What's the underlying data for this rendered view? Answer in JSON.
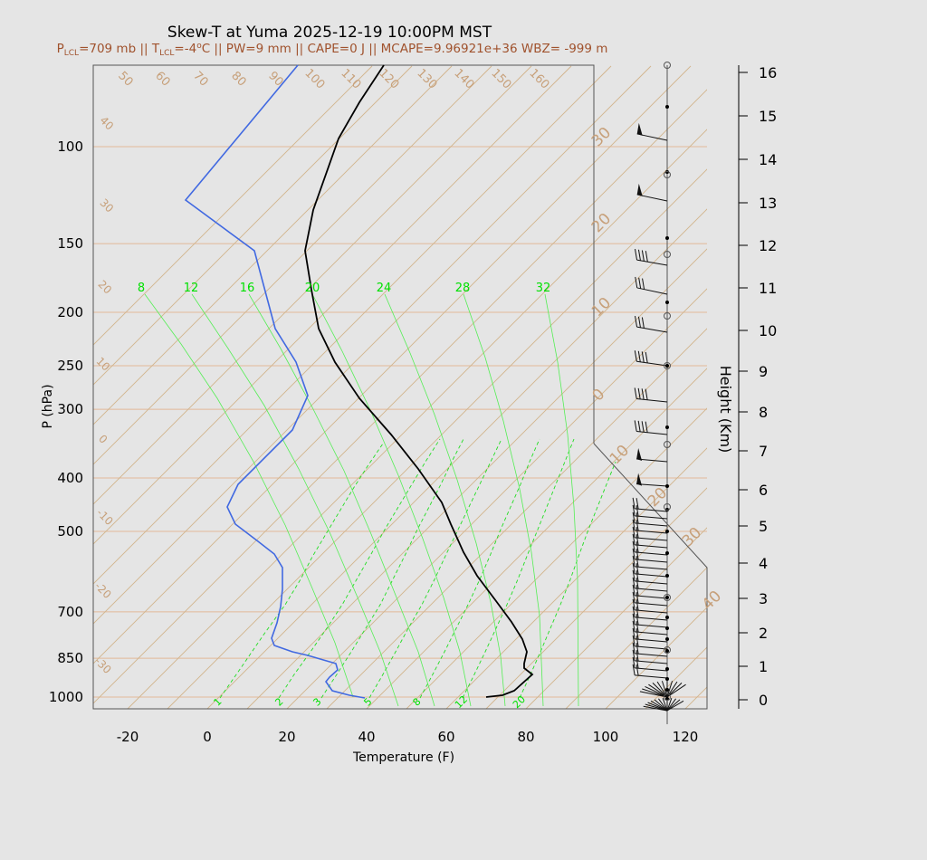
{
  "chart_data": {
    "type": "skew-t",
    "title": "Skew-T at Yuma 2025-12-19 10:00PM MST",
    "subtitle": {
      "lcl_p_label": "P",
      "lcl_p_sub": "LCL",
      "lcl_p_value": "=709 mb || ",
      "lcl_t_label": "T",
      "lcl_t_sub": "LCL",
      "lcl_t_value": "=-4",
      "lcl_t_unit": "C || PW=9 mm || CAPE=0 J || MCAPE=9.96921e+36 WBZ= -999 m"
    },
    "xlabel": "Temperature (F)",
    "ylabel": "P (hPa)",
    "height_label": "Height (Km)",
    "colors": {
      "temperature": "#000000",
      "dewpoint": "#4169e1",
      "isotherm": "#d2b48c",
      "mixing_ratio": "#00ee00",
      "background": "#e5e5e5"
    },
    "x_ticks": [
      "-20",
      "0",
      "20",
      "40",
      "60",
      "80",
      "100",
      "120"
    ],
    "p_ticks": [
      "100",
      "150",
      "200",
      "250",
      "300",
      "400",
      "500",
      "700",
      "850",
      "1000"
    ],
    "height_ticks": [
      "0",
      "1",
      "2",
      "3",
      "4",
      "5",
      "6",
      "7",
      "8",
      "9",
      "10",
      "11",
      "12",
      "13",
      "14",
      "15",
      "16"
    ],
    "isotherm_labels_top": [
      "50",
      "60",
      "70",
      "80",
      "90",
      "100",
      "110",
      "120",
      "130",
      "140",
      "150",
      "160"
    ],
    "isotherm_labels_left": [
      "40",
      "30",
      "20",
      "10",
      "0",
      "-10",
      "-20",
      "-30"
    ],
    "isotherm_labels_right": [
      "30",
      "20",
      "10",
      "0",
      "10",
      "20",
      "30",
      "40"
    ],
    "mixing_ratio_labels_top": [
      "8",
      "12",
      "16",
      "20",
      "24",
      "28",
      "32"
    ],
    "mixing_ratio_labels_bottom": [
      "1",
      "2",
      "3",
      "5",
      "8",
      "12",
      "20"
    ]
  }
}
